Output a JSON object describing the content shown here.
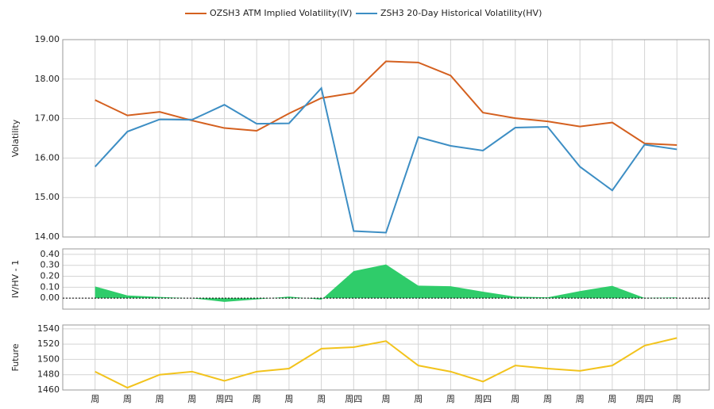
{
  "chart_data": [
    {
      "type": "line",
      "y_label": "Volatility",
      "series": [
        {
          "name": "OZSH3 ATM Implied Volatility(IV)",
          "color": "#d4601f",
          "values": [
            17.47,
            17.08,
            17.17,
            16.95,
            16.76,
            16.69,
            17.13,
            17.52,
            17.65,
            18.45,
            18.42,
            18.09,
            17.15,
            17.01,
            16.93,
            16.8,
            16.9,
            16.37,
            16.33
          ]
        },
        {
          "name": "ZSH3 20-Day Historical Volatility(HV)",
          "color": "#3d8ec4",
          "values": [
            15.78,
            16.67,
            16.98,
            16.97,
            17.35,
            16.87,
            16.88,
            17.77,
            14.15,
            14.11,
            16.53,
            16.31,
            16.19,
            16.77,
            16.79,
            15.78,
            15.18,
            16.34,
            16.22
          ]
        }
      ],
      "ylim": [
        14,
        19
      ],
      "yticks": [
        {
          "value": 14,
          "label": "14.00"
        },
        {
          "value": 15,
          "label": "15.00"
        },
        {
          "value": 16,
          "label": "16.00"
        },
        {
          "value": 17,
          "label": "17.00"
        },
        {
          "value": 18,
          "label": "18.00"
        },
        {
          "value": 19,
          "label": "19.00"
        }
      ],
      "grid": true
    },
    {
      "type": "area",
      "y_label": "IV/HV - 1",
      "color": "#2fcc6a",
      "values": [
        0.107,
        0.025,
        0.011,
        -0.001,
        -0.034,
        -0.011,
        0.015,
        -0.014,
        0.247,
        0.308,
        0.114,
        0.109,
        0.059,
        0.014,
        0.008,
        0.065,
        0.113,
        0.002,
        0.007
      ],
      "ylim": [
        -0.1,
        0.45
      ],
      "yticks": [
        {
          "value": 0,
          "label": "0.00"
        },
        {
          "value": 0.1,
          "label": "0.10"
        },
        {
          "value": 0.2,
          "label": "0.20"
        },
        {
          "value": 0.3,
          "label": "0.30"
        },
        {
          "value": 0.4,
          "label": "0.40"
        }
      ],
      "grid": true
    },
    {
      "type": "line",
      "y_label": "Future",
      "categories": [
        "周",
        "周",
        "周",
        "周",
        "周四",
        "周",
        "周",
        "周",
        "周四",
        "周",
        "周",
        "周",
        "周四",
        "周",
        "周",
        "周",
        "周",
        "周四",
        "周"
      ],
      "series": [
        {
          "name": "Future",
          "color": "#f2c31c",
          "values": [
            1484,
            1463,
            1480,
            1484,
            1472,
            1484,
            1488,
            1514,
            1516,
            1524,
            1492,
            1484,
            1471,
            1492,
            1488,
            1485,
            1492,
            1518,
            1528
          ]
        }
      ],
      "ylim": [
        1460,
        1545
      ],
      "yticks": [
        1460,
        1480,
        1500,
        1520,
        1540
      ],
      "grid": true
    }
  ]
}
